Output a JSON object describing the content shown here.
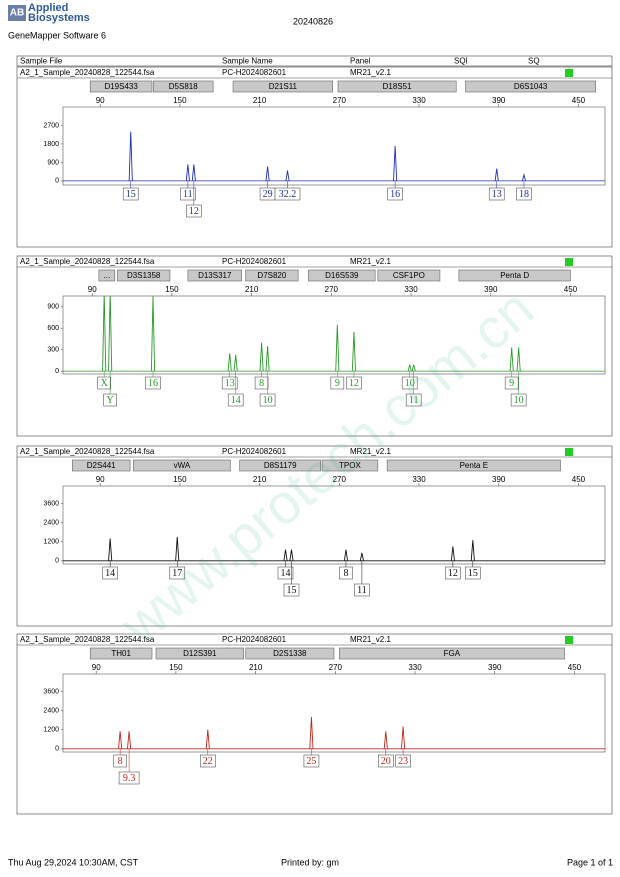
{
  "header": {
    "logo_mark": "AB",
    "logo": "Applied Biosystems",
    "software": "GeneMapper Software 6",
    "date": "20240826"
  },
  "columns": [
    "Sample File",
    "Sample Name",
    "Panel",
    "SQI",
    "SQ"
  ],
  "watermark": "www.protech.com.cn",
  "panels": [
    {
      "sample_file": "A2_1_Sample_20240828_122544.fsa",
      "sample_name": "PC-H2024082601",
      "panel": "MR21_v2.1",
      "color": "#1f2fb0",
      "xlim": [
        62,
        470
      ],
      "xticks": [
        90,
        150,
        210,
        270,
        330,
        390,
        450
      ],
      "ylim": [
        -200,
        3600
      ],
      "yticks": [
        0,
        900,
        1800,
        2700
      ],
      "markers": [
        {
          "name": "D19S433",
          "start": 82.5,
          "end": 129
        },
        {
          "name": "D5S818",
          "start": 130,
          "end": 175
        },
        {
          "name": "D21S11",
          "start": 190,
          "end": 265
        },
        {
          "name": "D18S51",
          "start": 269,
          "end": 358
        },
        {
          "name": "D6S1043",
          "start": 365,
          "end": 463
        }
      ],
      "peaks": [
        {
          "x": 113,
          "height": 2400
        },
        {
          "x": 156,
          "height": 800
        },
        {
          "x": 160.5,
          "height": 800
        },
        {
          "x": 216,
          "height": 700
        },
        {
          "x": 231,
          "height": 500
        },
        {
          "x": 312,
          "height": 1700
        },
        {
          "x": 388.5,
          "height": 600
        },
        {
          "x": 409,
          "height": 300
        }
      ],
      "alleles": [
        {
          "label": "15",
          "x": 113
        },
        {
          "label": "11",
          "x": 156
        },
        {
          "label": "12",
          "x": 160.5
        },
        {
          "label": "29",
          "x": 216
        },
        {
          "label": "32.2",
          "x": 231
        },
        {
          "label": "16",
          "x": 312
        },
        {
          "label": "13",
          "x": 388.5
        },
        {
          "label": "18",
          "x": 409
        }
      ]
    },
    {
      "sample_file": "A2_1_Sample_20240828_122544.fsa",
      "sample_name": "PC-H2024082601",
      "panel": "MR21_v2.1",
      "color": "#2a9a2a",
      "xlim": [
        68,
        476
      ],
      "xticks": [
        90,
        150,
        210,
        270,
        330,
        390,
        450
      ],
      "ylim": [
        -40,
        1050
      ],
      "yticks": [
        0,
        300,
        600,
        900
      ],
      "markers": [
        {
          "name": "...",
          "start": 95,
          "end": 107
        },
        {
          "name": "D3S1358",
          "start": 109,
          "end": 148.5
        },
        {
          "name": "D13S317",
          "start": 162,
          "end": 202.5
        },
        {
          "name": "D7S820",
          "start": 205.5,
          "end": 245
        },
        {
          "name": "D16S539",
          "start": 252.75,
          "end": 303
        },
        {
          "name": "CSF1PO",
          "start": 305,
          "end": 351.75
        },
        {
          "name": "Penta D",
          "start": 366,
          "end": 450
        }
      ],
      "peaks": [
        {
          "x": 99,
          "height": 1100
        },
        {
          "x": 103.5,
          "height": 1100
        },
        {
          "x": 135.75,
          "height": 1050
        },
        {
          "x": 193.5,
          "height": 250
        },
        {
          "x": 198,
          "height": 230
        },
        {
          "x": 217.5,
          "height": 400
        },
        {
          "x": 222,
          "height": 350
        },
        {
          "x": 274.5,
          "height": 650
        },
        {
          "x": 287,
          "height": 550
        },
        {
          "x": 329,
          "height": 90
        },
        {
          "x": 332,
          "height": 90
        },
        {
          "x": 405.75,
          "height": 330
        },
        {
          "x": 411,
          "height": 330
        }
      ],
      "alleles": [
        {
          "label": "X",
          "x": 99
        },
        {
          "label": "Y",
          "x": 103.5
        },
        {
          "label": "16",
          "x": 135.75
        },
        {
          "label": "13",
          "x": 193.5
        },
        {
          "label": "14",
          "x": 198
        },
        {
          "label": "8",
          "x": 217.5
        },
        {
          "label": "10",
          "x": 222
        },
        {
          "label": "9",
          "x": 274.5
        },
        {
          "label": "12",
          "x": 287
        },
        {
          "label": "10",
          "x": 329
        },
        {
          "label": "11",
          "x": 332
        },
        {
          "label": "9",
          "x": 405.75
        },
        {
          "label": "10",
          "x": 411
        }
      ]
    },
    {
      "sample_file": "A2_1_Sample_20240828_122544.fsa",
      "sample_name": "PC-H2024082601",
      "panel": "MR21_v2.1",
      "color": "#111111",
      "xlim": [
        62,
        470
      ],
      "xticks": [
        90,
        150,
        210,
        270,
        330,
        390,
        450
      ],
      "ylim": [
        -200,
        4700
      ],
      "yticks": [
        0,
        1200,
        2400,
        3600
      ],
      "markers": [
        {
          "name": "D2S441",
          "start": 69,
          "end": 112.5
        },
        {
          "name": "vWA",
          "start": 115,
          "end": 188
        },
        {
          "name": "D8S1179",
          "start": 195,
          "end": 256
        },
        {
          "name": "TPOX",
          "start": 257,
          "end": 299
        },
        {
          "name": "Penta E",
          "start": 306,
          "end": 436.5
        }
      ],
      "peaks": [
        {
          "x": 97.5,
          "height": 1400
        },
        {
          "x": 148,
          "height": 1500
        },
        {
          "x": 229.5,
          "height": 700
        },
        {
          "x": 234,
          "height": 700
        },
        {
          "x": 275,
          "height": 700
        },
        {
          "x": 287,
          "height": 500
        },
        {
          "x": 355.5,
          "height": 900
        },
        {
          "x": 370.5,
          "height": 1300
        }
      ],
      "alleles": [
        {
          "label": "14",
          "x": 97.5
        },
        {
          "label": "17",
          "x": 148
        },
        {
          "label": "14",
          "x": 229.5
        },
        {
          "label": "15",
          "x": 234
        },
        {
          "label": "8",
          "x": 275
        },
        {
          "label": "11",
          "x": 287
        },
        {
          "label": "12",
          "x": 355.5
        },
        {
          "label": "15",
          "x": 370.5
        }
      ]
    },
    {
      "sample_file": "A2_1_Sample_20240828_122544.fsa",
      "sample_name": "PC-H2024082601",
      "panel": "MR21_v2.1",
      "color": "#c0281e",
      "xlim": [
        65,
        473
      ],
      "xticks": [
        90,
        150,
        210,
        270,
        330,
        390,
        450
      ],
      "ylim": [
        -200,
        4700
      ],
      "yticks": [
        0,
        1200,
        2400,
        3600
      ],
      "markers": [
        {
          "name": "TH01",
          "start": 85.5,
          "end": 132
        },
        {
          "name": "D12S391",
          "start": 135,
          "end": 201
        },
        {
          "name": "D2S1338",
          "start": 202.5,
          "end": 269
        },
        {
          "name": "FGA",
          "start": 273,
          "end": 442.5
        }
      ],
      "peaks": [
        {
          "x": 108,
          "height": 1100
        },
        {
          "x": 114.75,
          "height": 1100
        },
        {
          "x": 174,
          "height": 1200
        },
        {
          "x": 252,
          "height": 2000
        },
        {
          "x": 308,
          "height": 1100
        },
        {
          "x": 321,
          "height": 1400
        }
      ],
      "alleles": [
        {
          "label": "8",
          "x": 108
        },
        {
          "label": "9.3",
          "x": 114.75
        },
        {
          "label": "22",
          "x": 174
        },
        {
          "label": "25",
          "x": 252
        },
        {
          "label": "20",
          "x": 308
        },
        {
          "label": "23",
          "x": 321
        }
      ]
    }
  ],
  "footer": {
    "printed_at": "Thu Aug 29,2024 10:30AM, CST",
    "printed_by": "Printed by: gm",
    "page": "Page 1 of 1"
  }
}
